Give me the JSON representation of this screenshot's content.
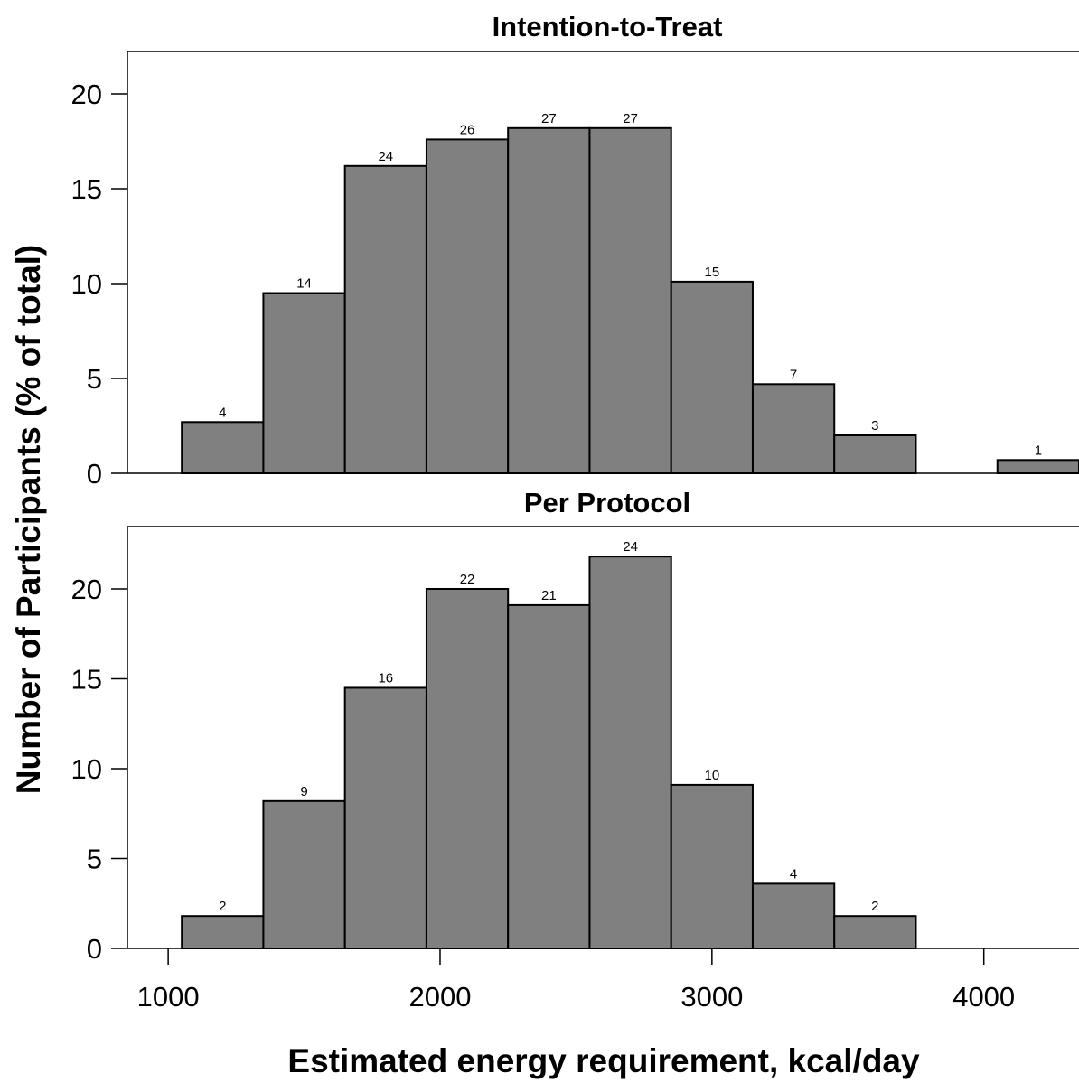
{
  "chart_data": {
    "type": "bar",
    "ylabel": "Number of Participants (% of total)",
    "xlabel": "Estimated energy requirement, kcal/day",
    "shared_x": {
      "xlim": [
        850,
        4350
      ],
      "ticks": [
        1000,
        2000,
        3000,
        4000
      ],
      "tick_labels": [
        "1000",
        "2000",
        "3000",
        "4000"
      ]
    },
    "panels": [
      {
        "title": "Intention-to-Treat",
        "ylim": [
          0,
          22
        ],
        "yticks": [
          0,
          5,
          10,
          15,
          20
        ],
        "ytick_labels": [
          "0",
          "5",
          "10",
          "15",
          "20"
        ],
        "bins": [
          {
            "start": 1050,
            "end": 1350,
            "percent": 2.7,
            "count": "4"
          },
          {
            "start": 1350,
            "end": 1650,
            "percent": 9.5,
            "count": "14"
          },
          {
            "start": 1650,
            "end": 1950,
            "percent": 16.2,
            "count": "24"
          },
          {
            "start": 1950,
            "end": 2250,
            "percent": 17.6,
            "count": "26"
          },
          {
            "start": 2250,
            "end": 2550,
            "percent": 18.2,
            "count": "27"
          },
          {
            "start": 2550,
            "end": 2850,
            "percent": 18.2,
            "count": "27"
          },
          {
            "start": 2850,
            "end": 3150,
            "percent": 10.1,
            "count": "15"
          },
          {
            "start": 3150,
            "end": 3450,
            "percent": 4.7,
            "count": "7"
          },
          {
            "start": 3450,
            "end": 3750,
            "percent": 2.0,
            "count": "3"
          },
          {
            "start": 4050,
            "end": 4350,
            "percent": 0.7,
            "count": "1"
          }
        ]
      },
      {
        "title": "Per Protocol",
        "ylim": [
          0,
          23
        ],
        "yticks": [
          0,
          5,
          10,
          15,
          20
        ],
        "ytick_labels": [
          "0",
          "5",
          "10",
          "15",
          "20"
        ],
        "bins": [
          {
            "start": 1050,
            "end": 1350,
            "percent": 1.8,
            "count": "2"
          },
          {
            "start": 1350,
            "end": 1650,
            "percent": 8.2,
            "count": "9"
          },
          {
            "start": 1650,
            "end": 1950,
            "percent": 14.5,
            "count": "16"
          },
          {
            "start": 1950,
            "end": 2250,
            "percent": 20.0,
            "count": "22"
          },
          {
            "start": 2250,
            "end": 2550,
            "percent": 19.1,
            "count": "21"
          },
          {
            "start": 2550,
            "end": 2850,
            "percent": 21.8,
            "count": "24"
          },
          {
            "start": 2850,
            "end": 3150,
            "percent": 9.1,
            "count": "10"
          },
          {
            "start": 3150,
            "end": 3450,
            "percent": 3.6,
            "count": "4"
          },
          {
            "start": 3450,
            "end": 3750,
            "percent": 1.8,
            "count": "2"
          }
        ]
      }
    ]
  }
}
